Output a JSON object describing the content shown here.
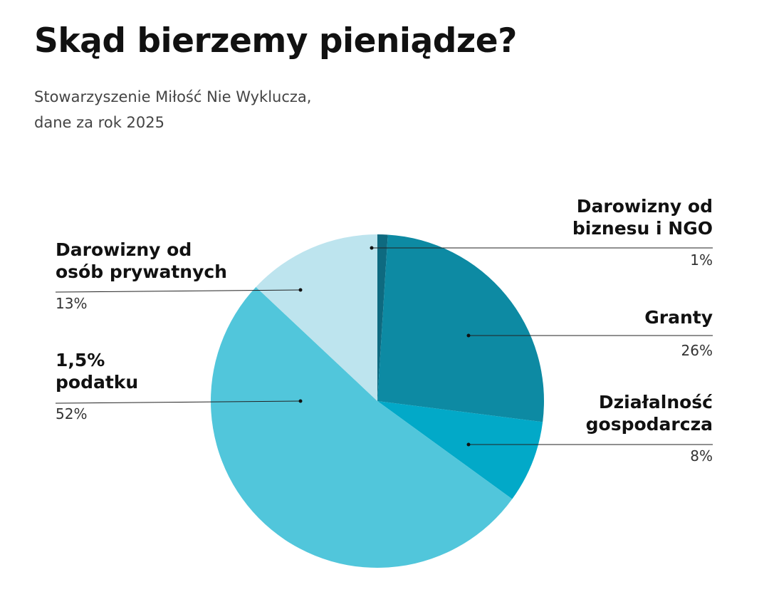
{
  "title": "Skąd bierzemy pieniądze?",
  "subtitle": [
    "Stowarzyszenie Miłość Nie Wyklucza,",
    "dane za rok 2025"
  ],
  "chart_data": {
    "type": "pie",
    "title": "Skąd bierzemy pieniądze?",
    "slices": [
      {
        "label": [
          "Darowizny od",
          "biznesu i NGO"
        ],
        "value": 1,
        "pct_label": "1%",
        "color": "#0e6a80"
      },
      {
        "label": [
          "Granty"
        ],
        "value": 26,
        "pct_label": "26%",
        "color": "#0d8aa3"
      },
      {
        "label": [
          "Działalność",
          "gospodarcza"
        ],
        "value": 8,
        "pct_label": "8%",
        "color": "#02a9c8"
      },
      {
        "label": [
          "1,5%",
          "podatku"
        ],
        "value": 52,
        "pct_label": "52%",
        "color": "#51c6db"
      },
      {
        "label": [
          "Darowizny od",
          "osób prywatnych"
        ],
        "value": 13,
        "pct_label": "13%",
        "color": "#bde4ee"
      }
    ],
    "start": "12 o'clock",
    "direction": "clockwise",
    "legend": "leader-line labels"
  }
}
